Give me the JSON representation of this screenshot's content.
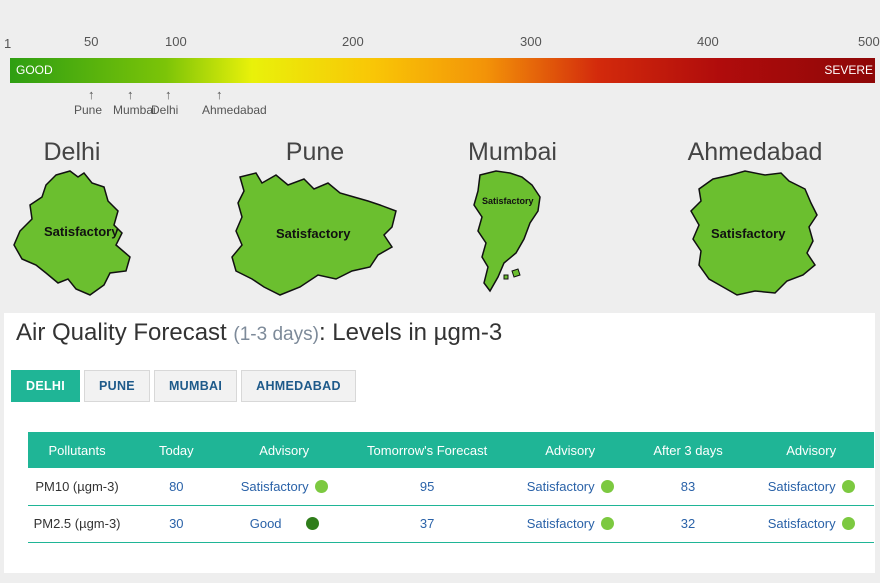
{
  "scale": {
    "ticks": [
      "1",
      "50",
      "100",
      "200",
      "300",
      "400",
      "500"
    ],
    "good_label": "GOOD",
    "severe_label": "SEVERE",
    "markers": [
      "Pune",
      "Mumbai",
      "Delhi",
      "Ahmedabad"
    ],
    "marker_arrow": "↑",
    "gradient_colors": [
      "#2e9e12",
      "#e9f10a",
      "#f39308",
      "#8e0707"
    ]
  },
  "cities": [
    {
      "name": "Delhi",
      "status": "Satisfactory"
    },
    {
      "name": "Pune",
      "status": "Satisfactory"
    },
    {
      "name": "Mumbai",
      "status": "Satisfactory"
    },
    {
      "name": "Ahmedabad",
      "status": "Satisfactory"
    }
  ],
  "forecast": {
    "title": "Air Quality Forecast",
    "subtitle": "(1-3 days)",
    "title_suffix": ": Levels in µgm-3",
    "tabs": [
      "DELHI",
      "PUNE",
      "MUMBAI",
      "AHMEDABAD"
    ],
    "active_tab": "DELHI",
    "headers": [
      "Pollutants",
      "Today",
      "Advisory",
      "Tomorrow's Forecast",
      "Advisory",
      "After 3 days",
      "Advisory"
    ],
    "rows": [
      {
        "pollutant": "PM10 (µgm-3)",
        "today": "80",
        "adv1": "Satisfactory",
        "tomorrow": "95",
        "adv2": "Satisfactory",
        "after3": "83",
        "adv3": "Satisfactory"
      },
      {
        "pollutant": "PM2.5 (µgm-3)",
        "today": "30",
        "adv1": "Good",
        "tomorrow": "37",
        "adv2": "Satisfactory",
        "after3": "32",
        "adv3": "Satisfactory"
      }
    ]
  },
  "colors": {
    "accent": "#1fb596",
    "map_fill": "#6bbf2f",
    "satisfactory_dot": "#7cc940",
    "good_dot": "#2f7d1a"
  }
}
